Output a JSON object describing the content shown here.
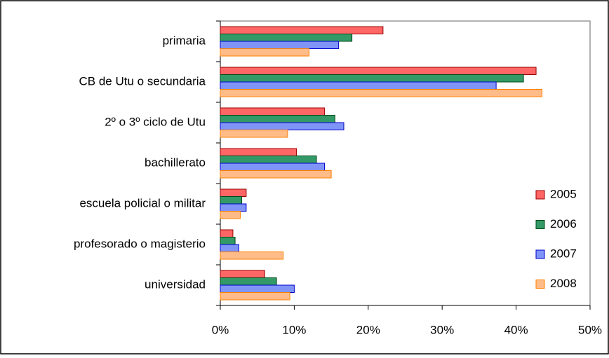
{
  "chart_data": {
    "type": "hbar",
    "categories": [
      "primaria",
      "CB de Utu o secundaria",
      "2º o 3º ciclo de Utu",
      "bachillerato",
      "escuela policial o militar",
      "profesorado o magisterio",
      "universidad"
    ],
    "series": [
      {
        "name": "2005",
        "color": "#ff6666",
        "values": [
          22,
          42.7,
          14.1,
          10.3,
          3.5,
          1.7,
          6.0
        ]
      },
      {
        "name": "2006",
        "color": "#339966",
        "values": [
          17.8,
          41.0,
          15.5,
          13.0,
          2.9,
          2.0,
          7.6
        ]
      },
      {
        "name": "2007",
        "color": "#8094f7",
        "values": [
          16.0,
          37.3,
          16.7,
          14.1,
          3.5,
          2.5,
          10.0
        ]
      },
      {
        "name": "2008",
        "color": "#ffbb88",
        "values": [
          12.0,
          43.5,
          9.1,
          15.0,
          2.7,
          8.5,
          9.4
        ]
      }
    ],
    "xlim": [
      0,
      50
    ],
    "xticks": [
      {
        "value": 0,
        "label": "0%"
      },
      {
        "value": 10,
        "label": "10%"
      },
      {
        "value": 20,
        "label": "20%"
      },
      {
        "value": 30,
        "label": "30%"
      },
      {
        "value": 40,
        "label": "40%"
      },
      {
        "value": 50,
        "label": "50%"
      }
    ],
    "legend": "right"
  }
}
